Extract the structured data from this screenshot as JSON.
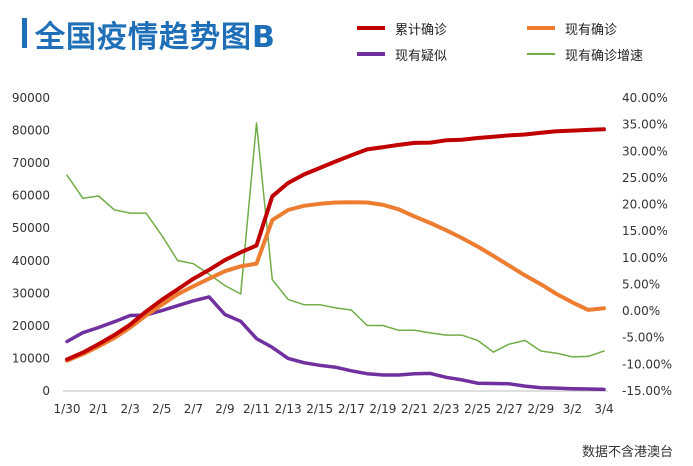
{
  "title": "全国疫情趋势图B",
  "source_note": "数据不含港澳台",
  "colors": {
    "title": "#1f6fb8",
    "confirmed": "#c00000",
    "existing": "#ed7d31",
    "suspected": "#7030a0",
    "growth": "#70ad47",
    "axis_text": "#333333",
    "axis_line": "#bfbfbf"
  },
  "chart_data": {
    "type": "line",
    "x": [
      "1/30",
      "1/31",
      "2/1",
      "2/2",
      "2/3",
      "2/4",
      "2/5",
      "2/6",
      "2/7",
      "2/8",
      "2/9",
      "2/10",
      "2/11",
      "2/12",
      "2/13",
      "2/14",
      "2/15",
      "2/16",
      "2/17",
      "2/18",
      "2/19",
      "2/20",
      "2/21",
      "2/22",
      "2/23",
      "2/24",
      "2/25",
      "2/26",
      "2/27",
      "2/28",
      "2/29",
      "3/1",
      "3/2",
      "3/3",
      "3/4"
    ],
    "x_tick_labels": [
      "1/30",
      "2/1",
      "2/3",
      "2/5",
      "2/7",
      "2/9",
      "2/11",
      "2/13",
      "2/15",
      "2/17",
      "2/19",
      "2/21",
      "2/23",
      "2/25",
      "2/27",
      "2/29",
      "3/2",
      "3/4"
    ],
    "y_left": {
      "min": 0,
      "max": 90000,
      "ticks": [
        "0",
        "10000",
        "20000",
        "30000",
        "40000",
        "50000",
        "60000",
        "70000",
        "80000",
        "90000"
      ]
    },
    "y_right": {
      "min": -15,
      "max": 40,
      "ticks": [
        "-15.00%",
        "-10.00%",
        "-5.00%",
        "0.00%",
        "5.00%",
        "10.00%",
        "15.00%",
        "20.00%",
        "25.00%",
        "30.00%",
        "35.00%",
        "40.00%"
      ]
    },
    "series": [
      {
        "name": "累计确诊",
        "axis": "left",
        "color_key": "confirmed",
        "width": 4,
        "values": [
          9700,
          11800,
          14400,
          17200,
          20400,
          24400,
          28000,
          31200,
          34500,
          37200,
          40200,
          42600,
          44700,
          59800,
          63900,
          66500,
          68500,
          70500,
          72400,
          74200,
          74900,
          75600,
          76200,
          76300,
          77000,
          77200,
          77700,
          78100,
          78500,
          78800,
          79300,
          79800,
          80000,
          80200,
          80400
        ]
      },
      {
        "name": "现有确诊",
        "axis": "left",
        "color_key": "existing",
        "width": 4,
        "values": [
          9300,
          11300,
          13700,
          16300,
          19500,
          23200,
          26500,
          29700,
          32200,
          34500,
          36800,
          38300,
          39100,
          52500,
          55600,
          56900,
          57500,
          57900,
          58000,
          57900,
          57200,
          55800,
          53600,
          51600,
          49400,
          47000,
          44400,
          41500,
          38500,
          35500,
          32800,
          29800,
          27200,
          24900,
          25400
        ]
      },
      {
        "name": "现有疑似",
        "axis": "left",
        "color_key": "suspected",
        "width": 3.5,
        "values": [
          15200,
          17900,
          19500,
          21300,
          23200,
          23300,
          24700,
          26200,
          27700,
          28900,
          23500,
          21400,
          16100,
          13400,
          10000,
          8700,
          7900,
          7300,
          6200,
          5300,
          4900,
          4900,
          5300,
          5400,
          4200,
          3400,
          2400,
          2300,
          2200,
          1500,
          1000,
          900,
          700,
          600,
          500
        ]
      },
      {
        "name": "现有确诊增速",
        "axis": "right",
        "color_key": "growth",
        "width": 1.5,
        "values": [
          25.5,
          21.2,
          21.6,
          19.0,
          18.4,
          18.4,
          14.2,
          9.5,
          8.9,
          6.9,
          4.8,
          3.2,
          35.3,
          5.9,
          2.2,
          1.2,
          1.2,
          0.6,
          0.2,
          -2.7,
          -2.7,
          -3.6,
          -3.6,
          -4.1,
          -4.5,
          -4.5,
          -5.5,
          -7.7,
          -6.2,
          -5.5,
          -7.5,
          -7.9,
          -8.6,
          -8.5,
          -7.5
        ]
      }
    ]
  }
}
